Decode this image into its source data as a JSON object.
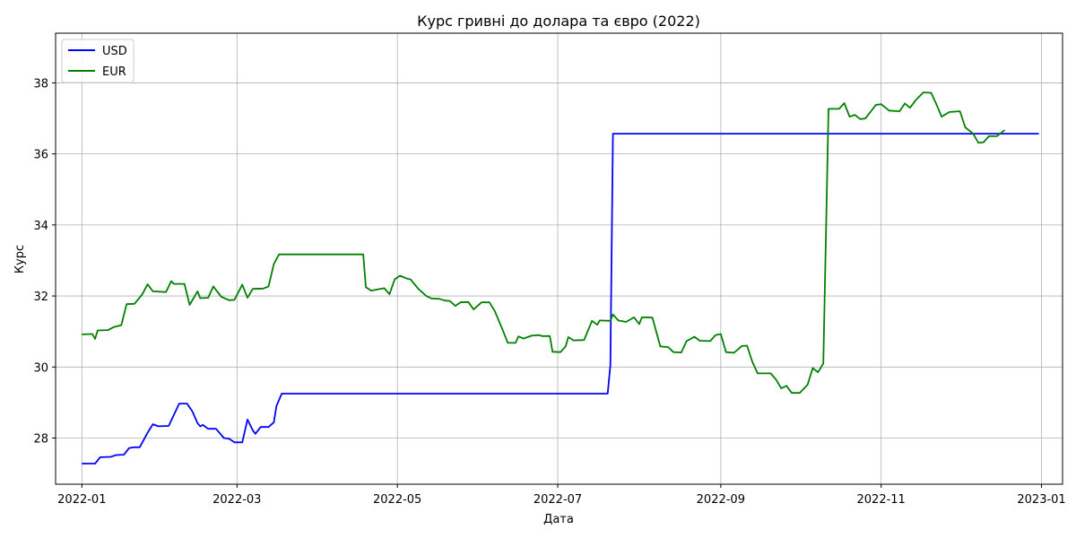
{
  "chart_data": {
    "type": "line",
    "title": "Курс гривні до долара та євро (2022)",
    "xlabel": "Дата",
    "ylabel": "Курс",
    "xlim": [
      "2021-12-22",
      "2023-01-09"
    ],
    "ylim": [
      26.7,
      39.4
    ],
    "x_ticks": [
      "2022-01",
      "2022-03",
      "2022-05",
      "2022-07",
      "2022-09",
      "2022-11",
      "2023-01"
    ],
    "y_ticks": [
      28,
      30,
      32,
      34,
      36,
      38
    ],
    "grid": true,
    "legend_position": "top-left",
    "series": [
      {
        "name": "USD",
        "color": "#0000ff",
        "points": [
          [
            "2022-01-01",
            27.28
          ],
          [
            "2022-01-06",
            27.28
          ],
          [
            "2022-01-08",
            27.46
          ],
          [
            "2022-01-12",
            27.47
          ],
          [
            "2022-01-14",
            27.52
          ],
          [
            "2022-01-17",
            27.53
          ],
          [
            "2022-01-19",
            27.72
          ],
          [
            "2022-01-21",
            27.74
          ],
          [
            "2022-01-23",
            27.74
          ],
          [
            "2022-01-26",
            28.15
          ],
          [
            "2022-01-28",
            28.39
          ],
          [
            "2022-01-30",
            28.33
          ],
          [
            "2022-02-03",
            28.34
          ],
          [
            "2022-02-05",
            28.65
          ],
          [
            "2022-02-07",
            28.97
          ],
          [
            "2022-02-10",
            28.97
          ],
          [
            "2022-02-12",
            28.75
          ],
          [
            "2022-02-14",
            28.42
          ],
          [
            "2022-02-15",
            28.33
          ],
          [
            "2022-02-16",
            28.37
          ],
          [
            "2022-02-18",
            28.26
          ],
          [
            "2022-02-21",
            28.26
          ],
          [
            "2022-02-24",
            28.0
          ],
          [
            "2022-02-26",
            27.98
          ],
          [
            "2022-02-28",
            27.88
          ],
          [
            "2022-03-03",
            27.88
          ],
          [
            "2022-03-05",
            28.52
          ],
          [
            "2022-03-07",
            28.22
          ],
          [
            "2022-03-08",
            28.12
          ],
          [
            "2022-03-10",
            28.31
          ],
          [
            "2022-03-13",
            28.31
          ],
          [
            "2022-03-15",
            28.44
          ],
          [
            "2022-03-16",
            28.9
          ],
          [
            "2022-03-18",
            29.25
          ],
          [
            "2022-07-20",
            29.25
          ],
          [
            "2022-07-21",
            30.05
          ],
          [
            "2022-07-22",
            36.57
          ],
          [
            "2022-12-31",
            36.57
          ]
        ]
      },
      {
        "name": "EUR",
        "color": "#008000",
        "points": [
          [
            "2022-01-01",
            30.92
          ],
          [
            "2022-01-05",
            30.93
          ],
          [
            "2022-01-06",
            30.79
          ],
          [
            "2022-01-07",
            31.03
          ],
          [
            "2022-01-11",
            31.04
          ],
          [
            "2022-01-13",
            31.12
          ],
          [
            "2022-01-16",
            31.18
          ],
          [
            "2022-01-18",
            31.77
          ],
          [
            "2022-01-21",
            31.78
          ],
          [
            "2022-01-24",
            32.05
          ],
          [
            "2022-01-26",
            32.33
          ],
          [
            "2022-01-28",
            32.13
          ],
          [
            "2022-02-02",
            32.11
          ],
          [
            "2022-02-04",
            32.42
          ],
          [
            "2022-02-05",
            32.34
          ],
          [
            "2022-02-09",
            32.34
          ],
          [
            "2022-02-11",
            31.75
          ],
          [
            "2022-02-14",
            32.13
          ],
          [
            "2022-02-15",
            31.94
          ],
          [
            "2022-02-18",
            31.95
          ],
          [
            "2022-02-20",
            32.27
          ],
          [
            "2022-02-23",
            31.98
          ],
          [
            "2022-02-26",
            31.88
          ],
          [
            "2022-02-28",
            31.89
          ],
          [
            "2022-03-03",
            32.32
          ],
          [
            "2022-03-05",
            31.95
          ],
          [
            "2022-03-07",
            32.2
          ],
          [
            "2022-03-11",
            32.21
          ],
          [
            "2022-03-13",
            32.27
          ],
          [
            "2022-03-15",
            32.9
          ],
          [
            "2022-03-17",
            33.17
          ],
          [
            "2022-04-18",
            33.17
          ],
          [
            "2022-04-19",
            32.25
          ],
          [
            "2022-04-21",
            32.15
          ],
          [
            "2022-04-26",
            32.22
          ],
          [
            "2022-04-28",
            32.05
          ],
          [
            "2022-04-30",
            32.47
          ],
          [
            "2022-05-02",
            32.57
          ],
          [
            "2022-05-05",
            32.48
          ],
          [
            "2022-05-06",
            32.47
          ],
          [
            "2022-05-09",
            32.2
          ],
          [
            "2022-05-12",
            32.0
          ],
          [
            "2022-05-14",
            31.93
          ],
          [
            "2022-05-17",
            31.92
          ],
          [
            "2022-05-19",
            31.87
          ],
          [
            "2022-05-21",
            31.86
          ],
          [
            "2022-05-23",
            31.72
          ],
          [
            "2022-05-25",
            31.82
          ],
          [
            "2022-05-28",
            31.83
          ],
          [
            "2022-05-30",
            31.62
          ],
          [
            "2022-06-02",
            31.82
          ],
          [
            "2022-06-05",
            31.82
          ],
          [
            "2022-06-07",
            31.58
          ],
          [
            "2022-06-10",
            31.05
          ],
          [
            "2022-06-12",
            30.68
          ],
          [
            "2022-06-15",
            30.68
          ],
          [
            "2022-06-16",
            30.86
          ],
          [
            "2022-06-18",
            30.8
          ],
          [
            "2022-06-21",
            30.88
          ],
          [
            "2022-06-24",
            30.9
          ],
          [
            "2022-06-25",
            30.87
          ],
          [
            "2022-06-28",
            30.87
          ],
          [
            "2022-06-29",
            30.43
          ],
          [
            "2022-07-02",
            30.42
          ],
          [
            "2022-07-04",
            30.58
          ],
          [
            "2022-07-05",
            30.84
          ],
          [
            "2022-07-07",
            30.75
          ],
          [
            "2022-07-11",
            30.76
          ],
          [
            "2022-07-14",
            31.3
          ],
          [
            "2022-07-16",
            31.19
          ],
          [
            "2022-07-17",
            31.31
          ],
          [
            "2022-07-21",
            31.3
          ],
          [
            "2022-07-22",
            31.48
          ],
          [
            "2022-07-24",
            31.31
          ],
          [
            "2022-07-27",
            31.27
          ],
          [
            "2022-07-30",
            31.4
          ],
          [
            "2022-08-01",
            31.21
          ],
          [
            "2022-08-02",
            31.4
          ],
          [
            "2022-08-06",
            31.39
          ],
          [
            "2022-08-09",
            30.58
          ],
          [
            "2022-08-12",
            30.56
          ],
          [
            "2022-08-14",
            30.42
          ],
          [
            "2022-08-17",
            30.41
          ],
          [
            "2022-08-19",
            30.73
          ],
          [
            "2022-08-22",
            30.85
          ],
          [
            "2022-08-24",
            30.74
          ],
          [
            "2022-08-28",
            30.73
          ],
          [
            "2022-08-30",
            30.9
          ],
          [
            "2022-09-01",
            30.93
          ],
          [
            "2022-09-03",
            30.42
          ],
          [
            "2022-09-06",
            30.4
          ],
          [
            "2022-09-09",
            30.59
          ],
          [
            "2022-09-11",
            30.6
          ],
          [
            "2022-09-13",
            30.15
          ],
          [
            "2022-09-15",
            29.82
          ],
          [
            "2022-09-20",
            29.82
          ],
          [
            "2022-09-22",
            29.65
          ],
          [
            "2022-09-24",
            29.4
          ],
          [
            "2022-09-26",
            29.47
          ],
          [
            "2022-09-28",
            29.27
          ],
          [
            "2022-10-01",
            29.27
          ],
          [
            "2022-10-04",
            29.5
          ],
          [
            "2022-10-06",
            29.97
          ],
          [
            "2022-10-08",
            29.85
          ],
          [
            "2022-10-10",
            30.1
          ],
          [
            "2022-10-12",
            37.27
          ],
          [
            "2022-10-16",
            37.27
          ],
          [
            "2022-10-18",
            37.43
          ],
          [
            "2022-10-20",
            37.05
          ],
          [
            "2022-10-22",
            37.1
          ],
          [
            "2022-10-24",
            36.98
          ],
          [
            "2022-10-26",
            37.0
          ],
          [
            "2022-10-30",
            37.38
          ],
          [
            "2022-11-01",
            37.4
          ],
          [
            "2022-11-04",
            37.22
          ],
          [
            "2022-11-08",
            37.2
          ],
          [
            "2022-11-10",
            37.42
          ],
          [
            "2022-11-12",
            37.3
          ],
          [
            "2022-11-14",
            37.5
          ],
          [
            "2022-11-17",
            37.73
          ],
          [
            "2022-11-20",
            37.72
          ],
          [
            "2022-11-22",
            37.4
          ],
          [
            "2022-11-24",
            37.05
          ],
          [
            "2022-11-27",
            37.18
          ],
          [
            "2022-12-01",
            37.2
          ],
          [
            "2022-12-03",
            36.75
          ],
          [
            "2022-12-06",
            36.57
          ],
          [
            "2022-12-08",
            36.31
          ],
          [
            "2022-12-10",
            36.33
          ],
          [
            "2022-12-12",
            36.5
          ],
          [
            "2022-12-15",
            36.5
          ],
          [
            "2022-12-18",
            36.67
          ]
        ]
      }
    ]
  }
}
